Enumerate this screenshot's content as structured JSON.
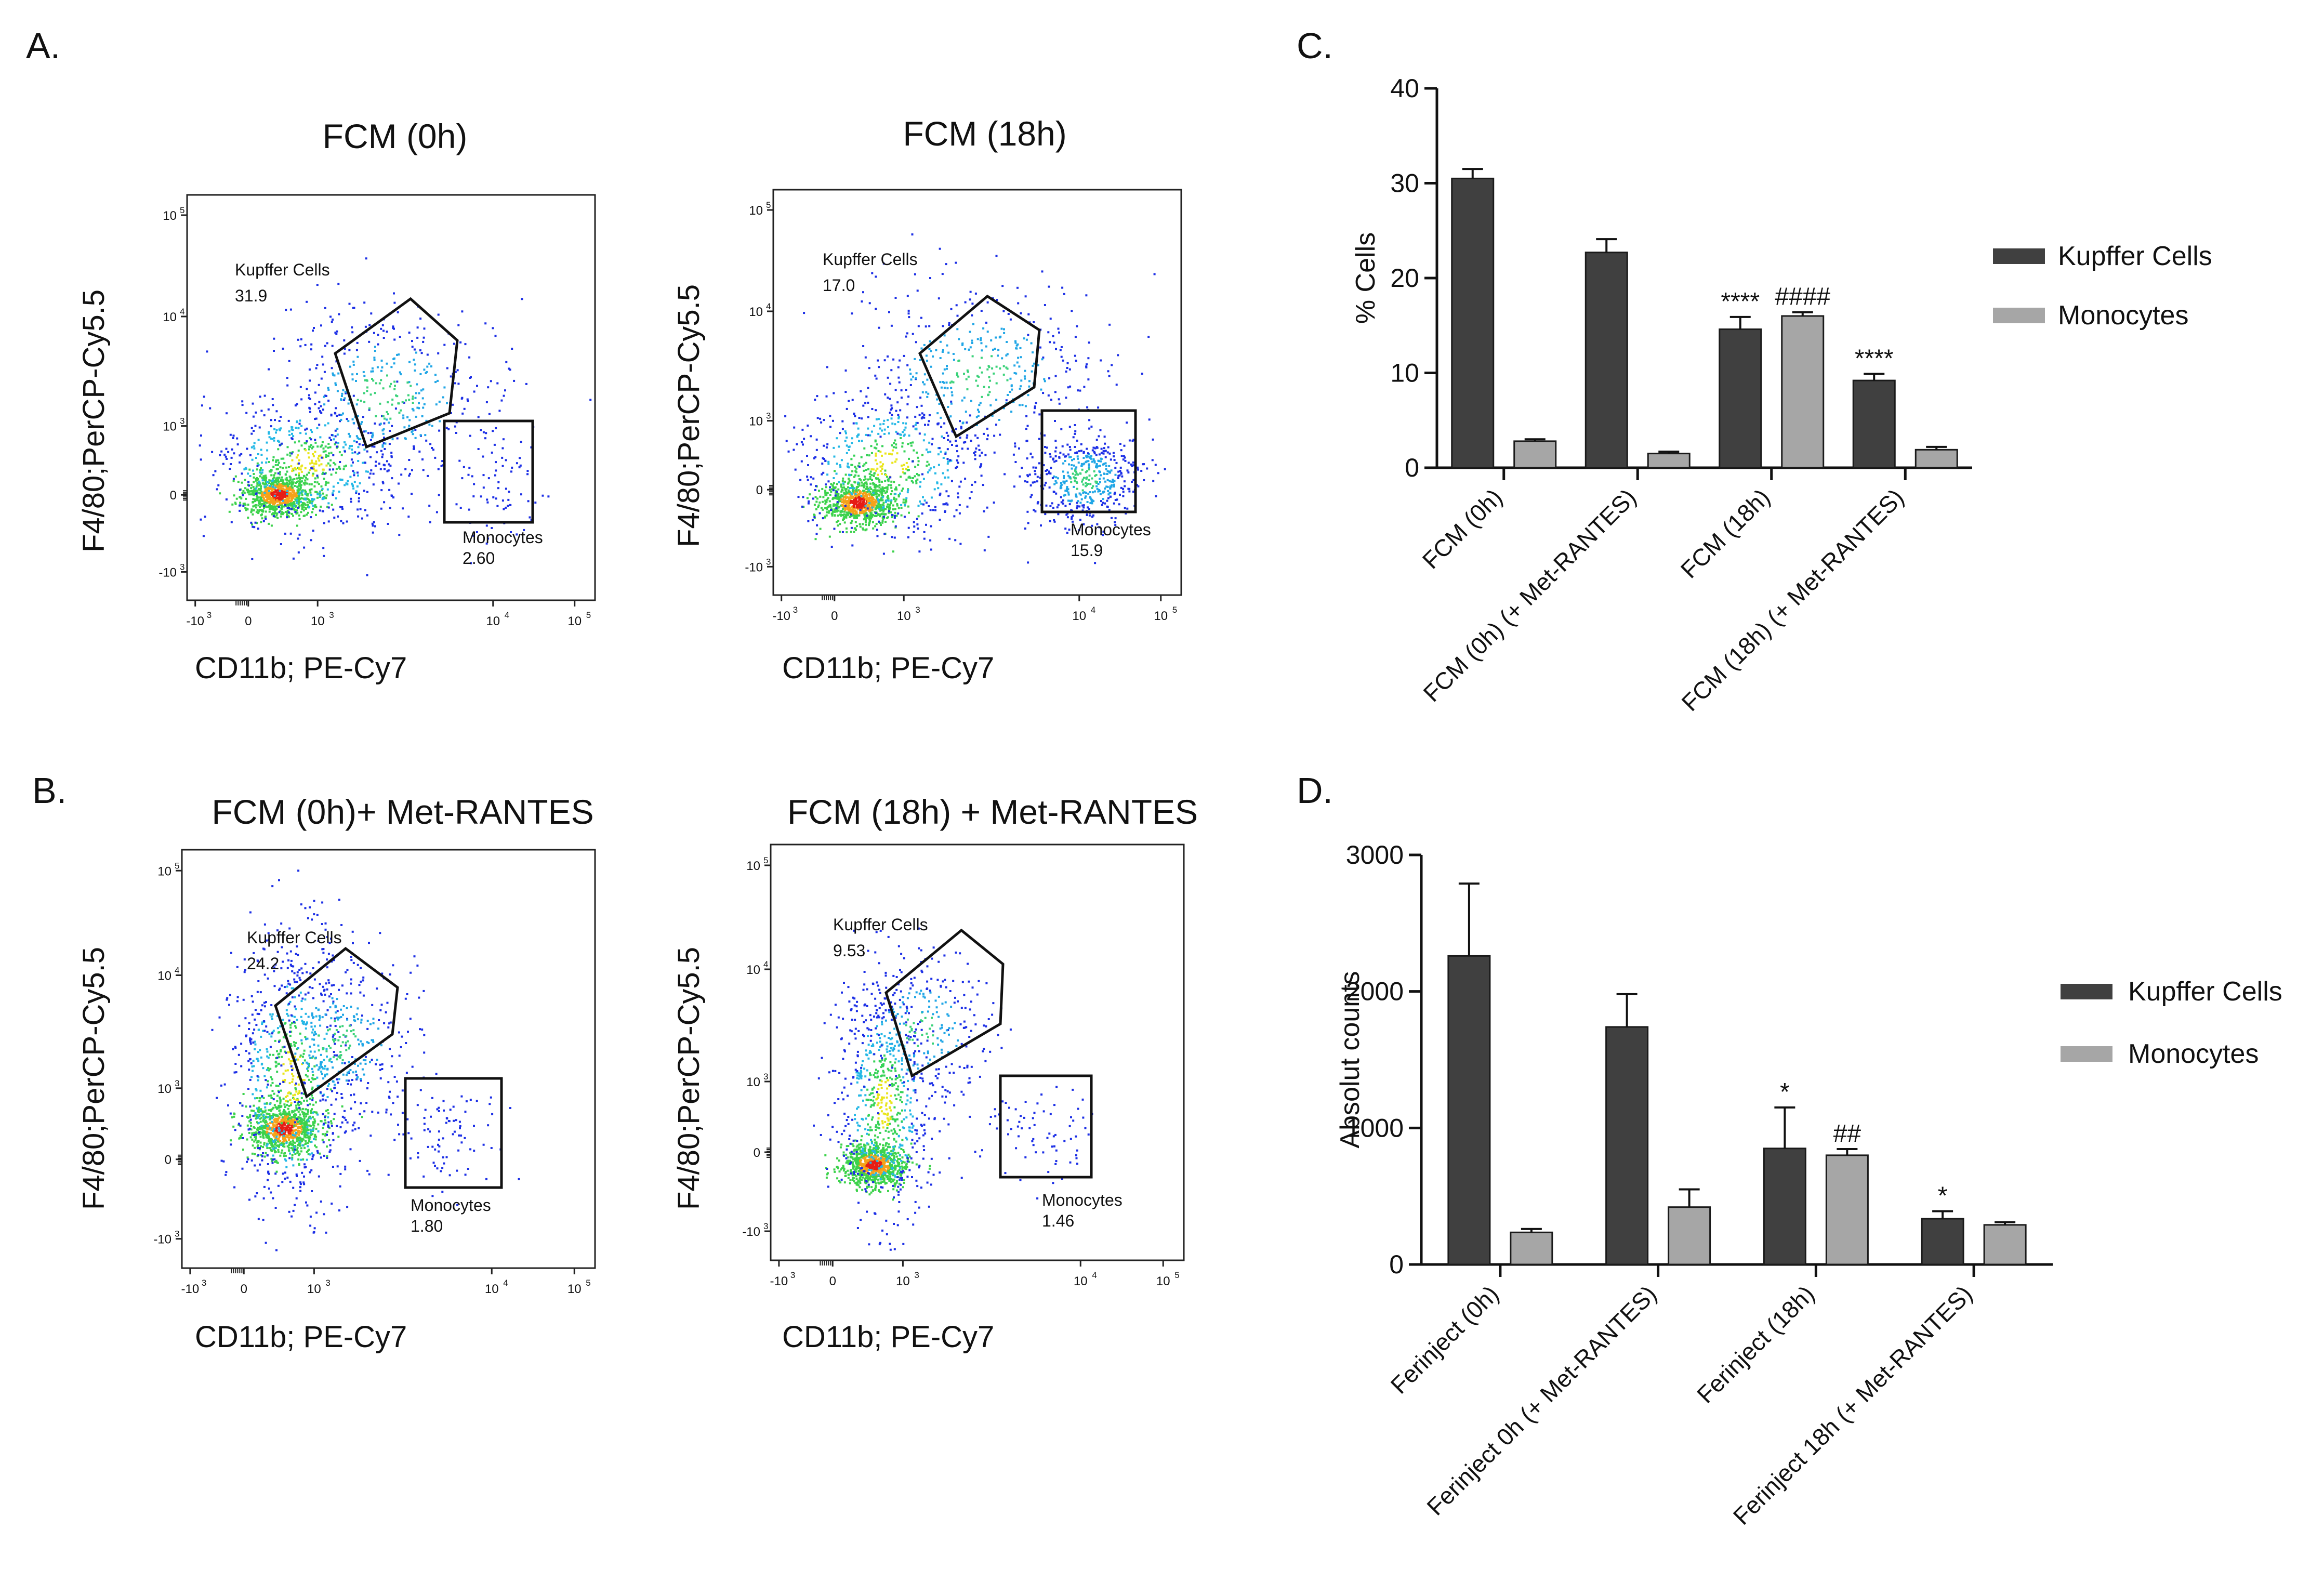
{
  "panels": {
    "A": "A.",
    "B": "B.",
    "C": "C.",
    "D": "D."
  },
  "flow_plots": [
    {
      "title": "FCM (0h)",
      "ylabel": "F4/80;PerCP-Cy5.5",
      "xlabel": "CD11b; PE-Cy7",
      "gates": [
        {
          "name": "Kupffer Cells",
          "value": "31.9"
        },
        {
          "name": "Monocytes",
          "value": "2.60"
        }
      ]
    },
    {
      "title": "FCM (18h)",
      "ylabel": "F4/80;PerCP-Cy5.5",
      "xlabel": "CD11b; PE-Cy7",
      "gates": [
        {
          "name": "Kupffer Cells",
          "value": "17.0"
        },
        {
          "name": "Monocytes",
          "value": "15.9"
        }
      ]
    },
    {
      "title": "FCM (0h)+ Met-RANTES",
      "ylabel": "F4/80;PerCP-Cy5.5",
      "xlabel": "CD11b; PE-Cy7",
      "gates": [
        {
          "name": "Kupffer Cells",
          "value": "24.2"
        },
        {
          "name": "Monocytes",
          "value": "1.80"
        }
      ]
    },
    {
      "title": "FCM (18h) + Met-RANTES",
      "ylabel": "F4/80;PerCP-Cy5.5",
      "xlabel": "CD11b; PE-Cy7",
      "gates": [
        {
          "name": "Kupffer Cells",
          "value": "9.53"
        },
        {
          "name": "Monocytes",
          "value": "1.46"
        }
      ]
    }
  ],
  "flow_axis": {
    "y_ticks": [
      {
        "base": "10",
        "exp": "5"
      },
      {
        "base": "10",
        "exp": "4"
      },
      {
        "base": "10",
        "exp": "3"
      },
      {
        "base": "0",
        "exp": ""
      },
      {
        "base": "-10",
        "exp": "3"
      }
    ],
    "x_ticks": [
      {
        "base": "-10",
        "exp": "3"
      },
      {
        "base": "0",
        "exp": ""
      },
      {
        "base": "10",
        "exp": "3"
      },
      {
        "base": "10",
        "exp": "4"
      },
      {
        "base": "10",
        "exp": "5"
      }
    ]
  },
  "legend": {
    "kupffer": "Kupffer Cells",
    "monocytes": "Monocytes"
  },
  "colors": {
    "kupffer": "#404040",
    "monocytes": "#a6a6a6",
    "axis": "#111111"
  },
  "chart_data": [
    {
      "type": "bar",
      "panel": "C.",
      "title": "",
      "ylabel": "% Cells",
      "xlabel": "",
      "ylim": [
        0,
        40
      ],
      "yticks": [
        0,
        10,
        20,
        30,
        40
      ],
      "categories": [
        "FCM (0h)",
        "FCM (0h) (+ Met-RANTES)",
        "FCM (18h)",
        "FCM (18h) (+ Met-RANTES)"
      ],
      "series": [
        {
          "name": "Kupffer Cells",
          "values": [
            30.5,
            22.7,
            14.6,
            9.2
          ],
          "errors": [
            1.0,
            1.4,
            1.3,
            0.7
          ],
          "annotations": [
            "",
            "",
            "****",
            "****"
          ]
        },
        {
          "name": "Monocytes",
          "values": [
            2.8,
            1.5,
            16.0,
            1.9
          ],
          "errors": [
            0.2,
            0.2,
            0.4,
            0.3
          ],
          "annotations": [
            "",
            "",
            "####",
            ""
          ]
        }
      ]
    },
    {
      "type": "bar",
      "panel": "D.",
      "title": "",
      "ylabel": "Absolut counts",
      "xlabel": "",
      "ylim": [
        0,
        3000
      ],
      "yticks": [
        0,
        1000,
        2000,
        3000
      ],
      "categories": [
        "Ferinject (0h)",
        "Ferinject 0h (+ Met-RANTES)",
        "Ferinject (18h)",
        "Ferinject 18h (+ Met-RANTES)"
      ],
      "series": [
        {
          "name": "Kupffer Cells",
          "values": [
            2260,
            1740,
            850,
            335
          ],
          "errors": [
            530,
            240,
            300,
            55
          ],
          "annotations": [
            "",
            "",
            "*",
            "*"
          ]
        },
        {
          "name": "Monocytes",
          "values": [
            235,
            420,
            800,
            290
          ],
          "errors": [
            25,
            130,
            45,
            20
          ],
          "annotations": [
            "",
            "",
            "##",
            ""
          ]
        }
      ]
    }
  ]
}
